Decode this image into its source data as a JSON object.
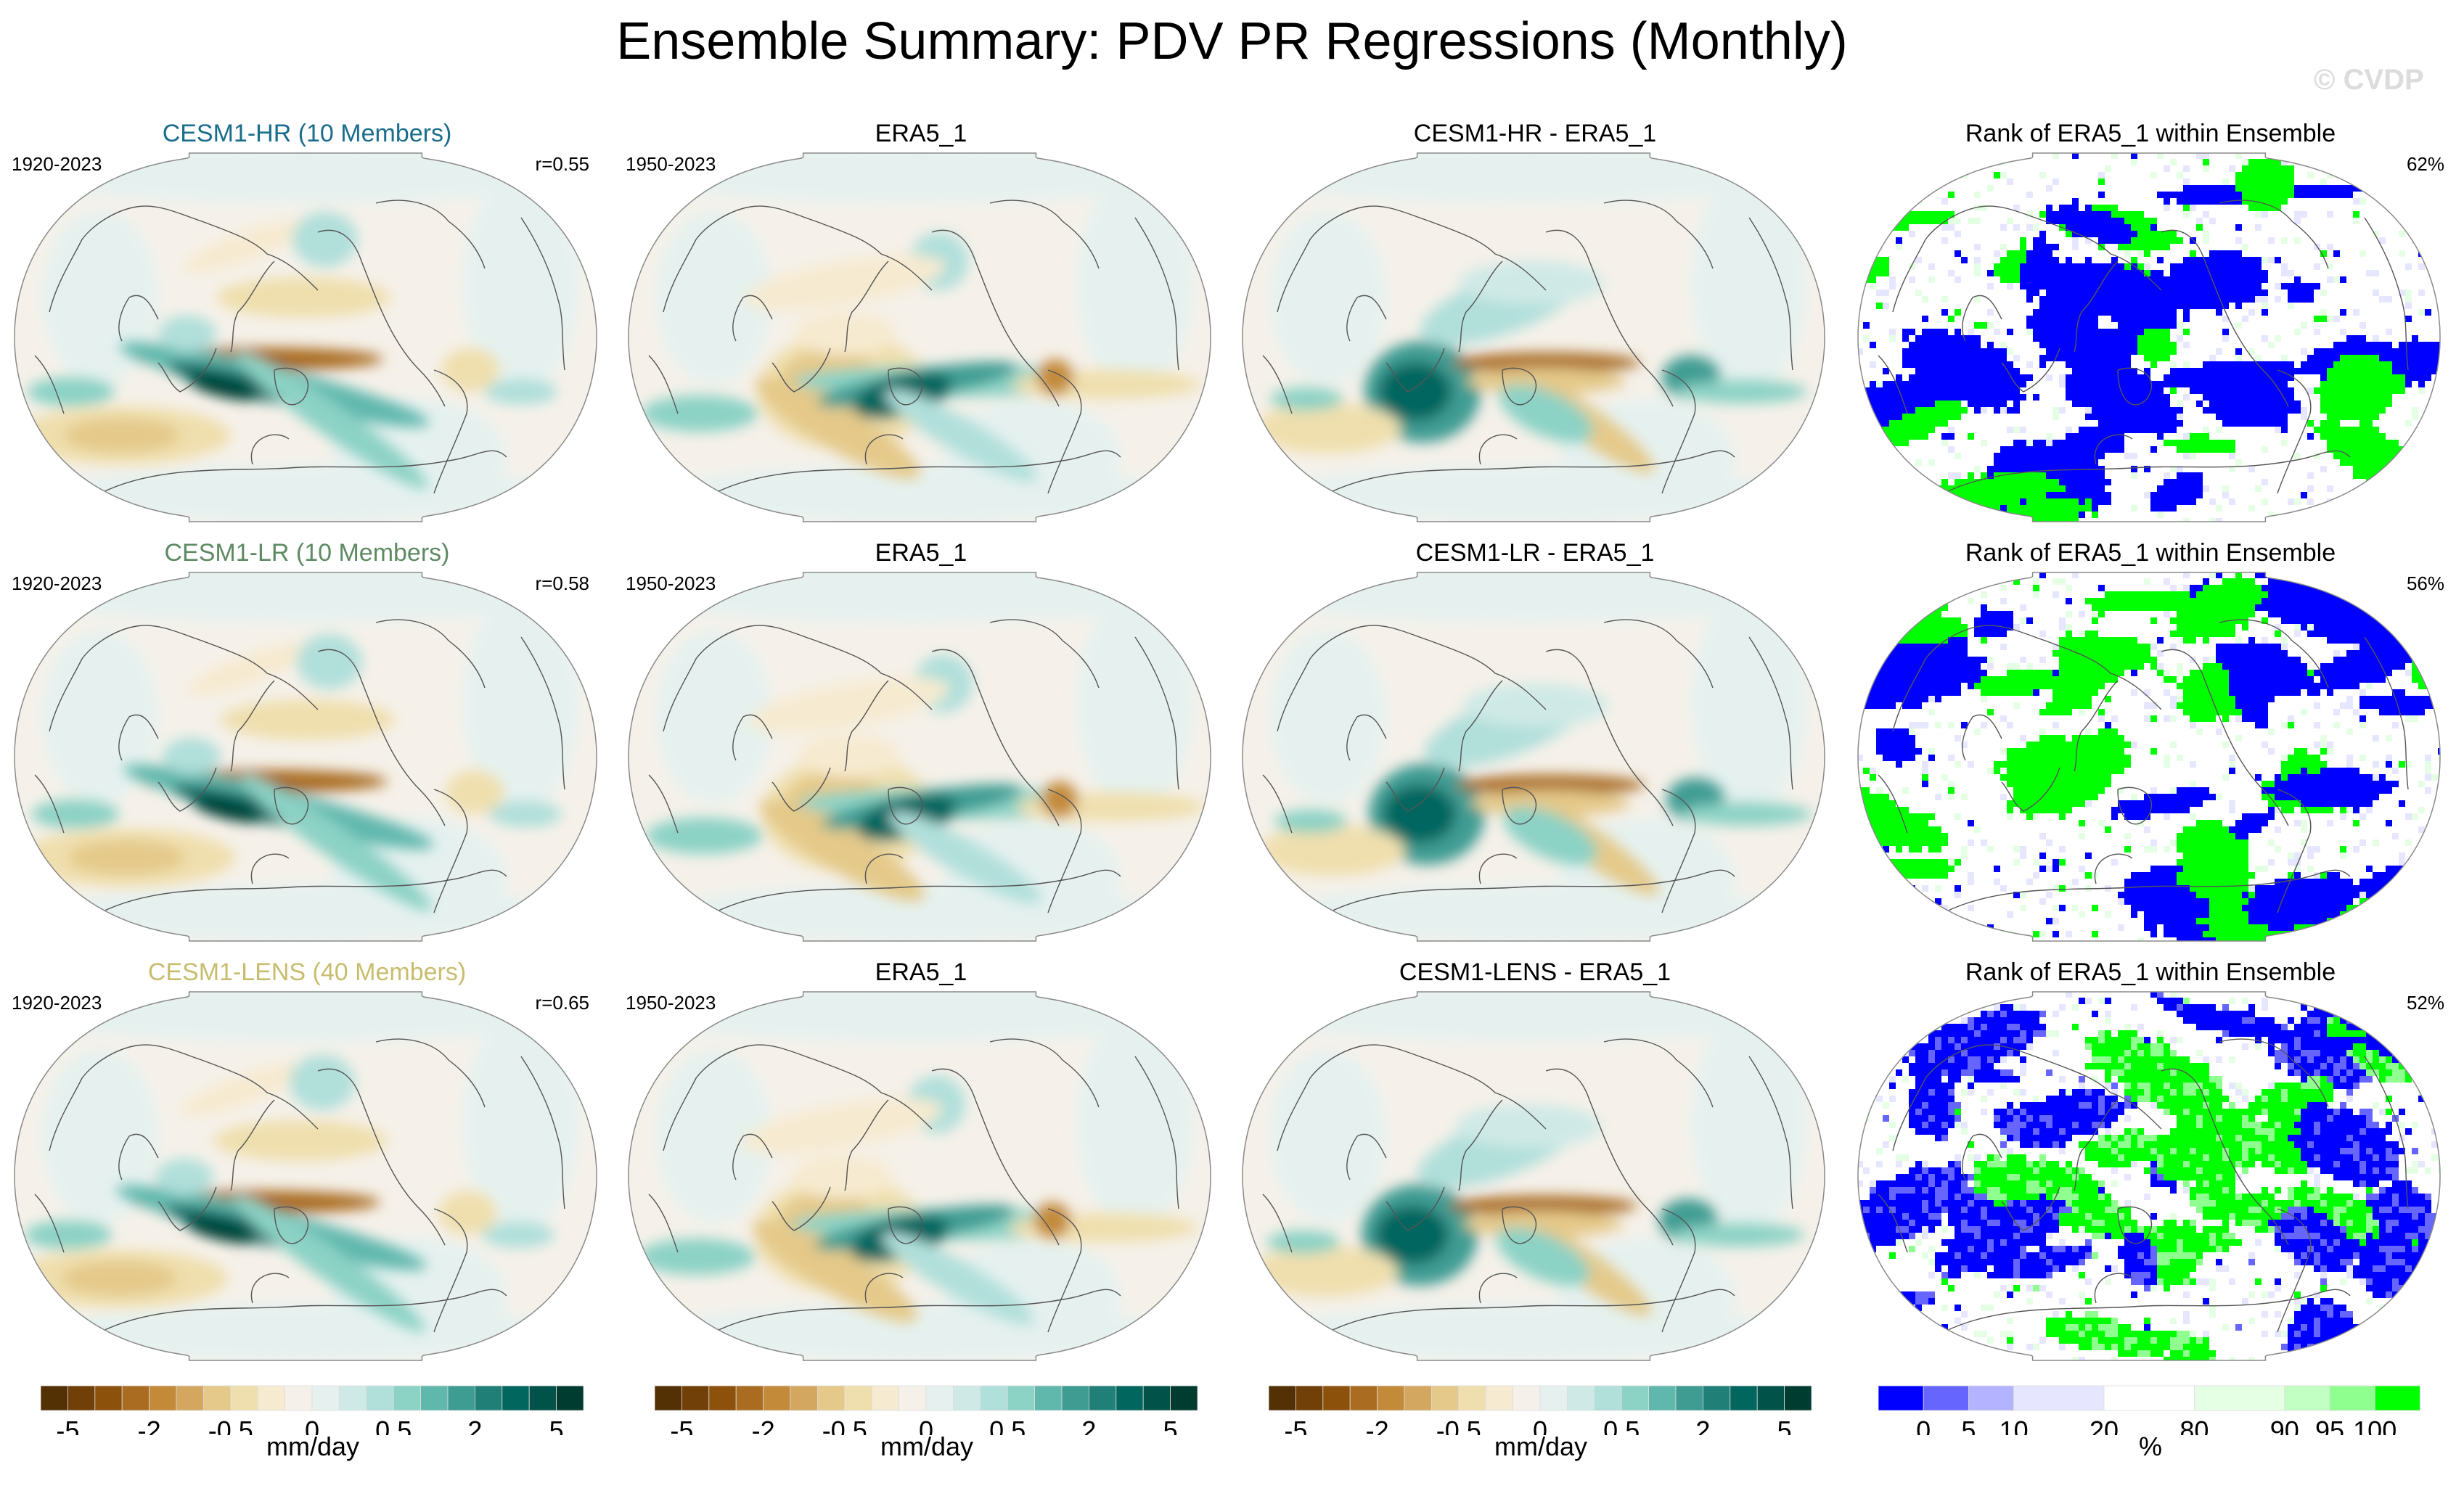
{
  "title": "Ensemble Summary: PDV PR Regressions (Monthly)",
  "watermark": "© CVDP",
  "colors": {
    "cesm1_hr": "#1a6d8c",
    "cesm1_lr": "#5e8a63",
    "cesm1_lens": "#c8bd6e",
    "rank_low": "#0000ff",
    "rank_high": "#00ff00"
  },
  "rows": [
    {
      "panels": [
        {
          "title": "CESM1-HR (10 Members)",
          "title_color": "#1a6d8c",
          "years": "1920-2023",
          "stat": "r=0.55",
          "kind": "model"
        },
        {
          "title": "ERA5_1",
          "title_color": "#000000",
          "years": "1950-2023",
          "stat": "",
          "kind": "obs"
        },
        {
          "title": "CESM1-HR - ERA5_1",
          "title_color": "#000000",
          "years": "",
          "stat": "",
          "kind": "diff"
        },
        {
          "title": "Rank of ERA5_1 within Ensemble",
          "title_color": "#000000",
          "years": "",
          "stat": "62%",
          "kind": "rank"
        }
      ]
    },
    {
      "panels": [
        {
          "title": "CESM1-LR (10 Members)",
          "title_color": "#5e8a63",
          "years": "1920-2023",
          "stat": "r=0.58",
          "kind": "model"
        },
        {
          "title": "ERA5_1",
          "title_color": "#000000",
          "years": "1950-2023",
          "stat": "",
          "kind": "obs"
        },
        {
          "title": "CESM1-LR - ERA5_1",
          "title_color": "#000000",
          "years": "",
          "stat": "",
          "kind": "diff"
        },
        {
          "title": "Rank of ERA5_1 within Ensemble",
          "title_color": "#000000",
          "years": "",
          "stat": "56%",
          "kind": "rank"
        }
      ]
    },
    {
      "panels": [
        {
          "title": "CESM1-LENS (40 Members)",
          "title_color": "#c8bd6e",
          "years": "1920-2023",
          "stat": "r=0.65",
          "kind": "model"
        },
        {
          "title": "ERA5_1",
          "title_color": "#000000",
          "years": "1950-2023",
          "stat": "",
          "kind": "obs"
        },
        {
          "title": "CESM1-LENS - ERA5_1",
          "title_color": "#000000",
          "years": "",
          "stat": "",
          "kind": "diff"
        },
        {
          "title": "Rank of ERA5_1 within Ensemble",
          "title_color": "#000000",
          "years": "",
          "stat": "52%",
          "kind": "rank"
        }
      ]
    }
  ],
  "colorbars": [
    {
      "label": "mm/day",
      "kind": "pr"
    },
    {
      "label": "mm/day",
      "kind": "pr"
    },
    {
      "label": "mm/day",
      "kind": "pr"
    },
    {
      "label": "%",
      "kind": "rank"
    }
  ],
  "chart_data": {
    "type": "heatmap",
    "title": "Ensemble Summary: PDV PR Regressions (Monthly)",
    "projection": "Robinson (Pacific-centered)",
    "pr_colorbar": {
      "units": "mm/day",
      "colors": [
        "#543005",
        "#714008",
        "#8c510a",
        "#a96c21",
        "#c38a3a",
        "#d3a75f",
        "#e4c98a",
        "#efdfae",
        "#f6ead0",
        "#f5f1ea",
        "#e6f1ef",
        "#cfe9e6",
        "#b1dfda",
        "#8cd2c5",
        "#60b8ad",
        "#3f9c93",
        "#208078",
        "#01665e",
        "#015248",
        "#003c30"
      ],
      "tick_labels": [
        "-5",
        "-2",
        "-0.5",
        "0",
        "0.5",
        "2",
        "5"
      ],
      "tick_boundaries": [
        1,
        4,
        7,
        10,
        13,
        16,
        19
      ]
    },
    "rank_colorbar": {
      "units": "%",
      "colors": [
        "#0000ff",
        "#6666ff",
        "#b3b3ff",
        "#e6e6ff",
        "#ffffff",
        "#e5ffe5",
        "#c2ffc2",
        "#8fff8f",
        "#00ff00"
      ],
      "tick_labels": [
        "0",
        "5",
        "10",
        "20",
        "80",
        "90",
        "95",
        "100"
      ]
    },
    "panels": [
      {
        "row": 1,
        "col": 1,
        "title": "CESM1-HR (10 Members)",
        "period": "1920-2023",
        "pattern_correlation": 0.55
      },
      {
        "row": 1,
        "col": 2,
        "title": "ERA5_1",
        "period": "1950-2023"
      },
      {
        "row": 1,
        "col": 3,
        "title": "CESM1-HR - ERA5_1"
      },
      {
        "row": 1,
        "col": 4,
        "title": "Rank of ERA5_1 within Ensemble",
        "percent_area": 62
      },
      {
        "row": 2,
        "col": 1,
        "title": "CESM1-LR (10 Members)",
        "period": "1920-2023",
        "pattern_correlation": 0.58
      },
      {
        "row": 2,
        "col": 2,
        "title": "ERA5_1",
        "period": "1950-2023"
      },
      {
        "row": 2,
        "col": 3,
        "title": "CESM1-LR - ERA5_1"
      },
      {
        "row": 2,
        "col": 4,
        "title": "Rank of ERA5_1 within Ensemble",
        "percent_area": 56
      },
      {
        "row": 3,
        "col": 1,
        "title": "CESM1-LENS (40 Members)",
        "period": "1920-2023",
        "pattern_correlation": 0.65
      },
      {
        "row": 3,
        "col": 2,
        "title": "ERA5_1",
        "period": "1950-2023"
      },
      {
        "row": 3,
        "col": 3,
        "title": "CESM1-LENS - ERA5_1"
      },
      {
        "row": 3,
        "col": 4,
        "title": "Rank of ERA5_1 within Ensemble",
        "percent_area": 52
      }
    ]
  }
}
